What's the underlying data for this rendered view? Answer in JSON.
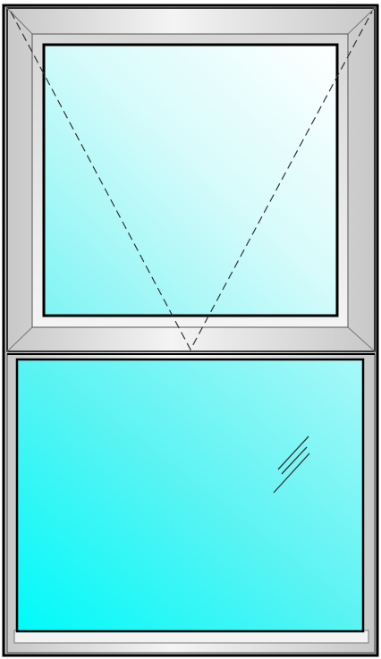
{
  "diagram": {
    "kind": "window-elevation",
    "panes": [
      {
        "id": "top",
        "operation": "top-hung-opening",
        "opening_indicator": "dashed-v"
      },
      {
        "id": "bottom",
        "operation": "fixed",
        "glass_marker": "reflection-lines"
      }
    ],
    "colors": {
      "frame_outline": "#000000",
      "frame_light": "#f4f4f4",
      "frame_shade": "#c8c8c8",
      "glass_light": "#ffffff",
      "glass_dark": "#00ffff",
      "indicator_line": "#333333"
    }
  }
}
